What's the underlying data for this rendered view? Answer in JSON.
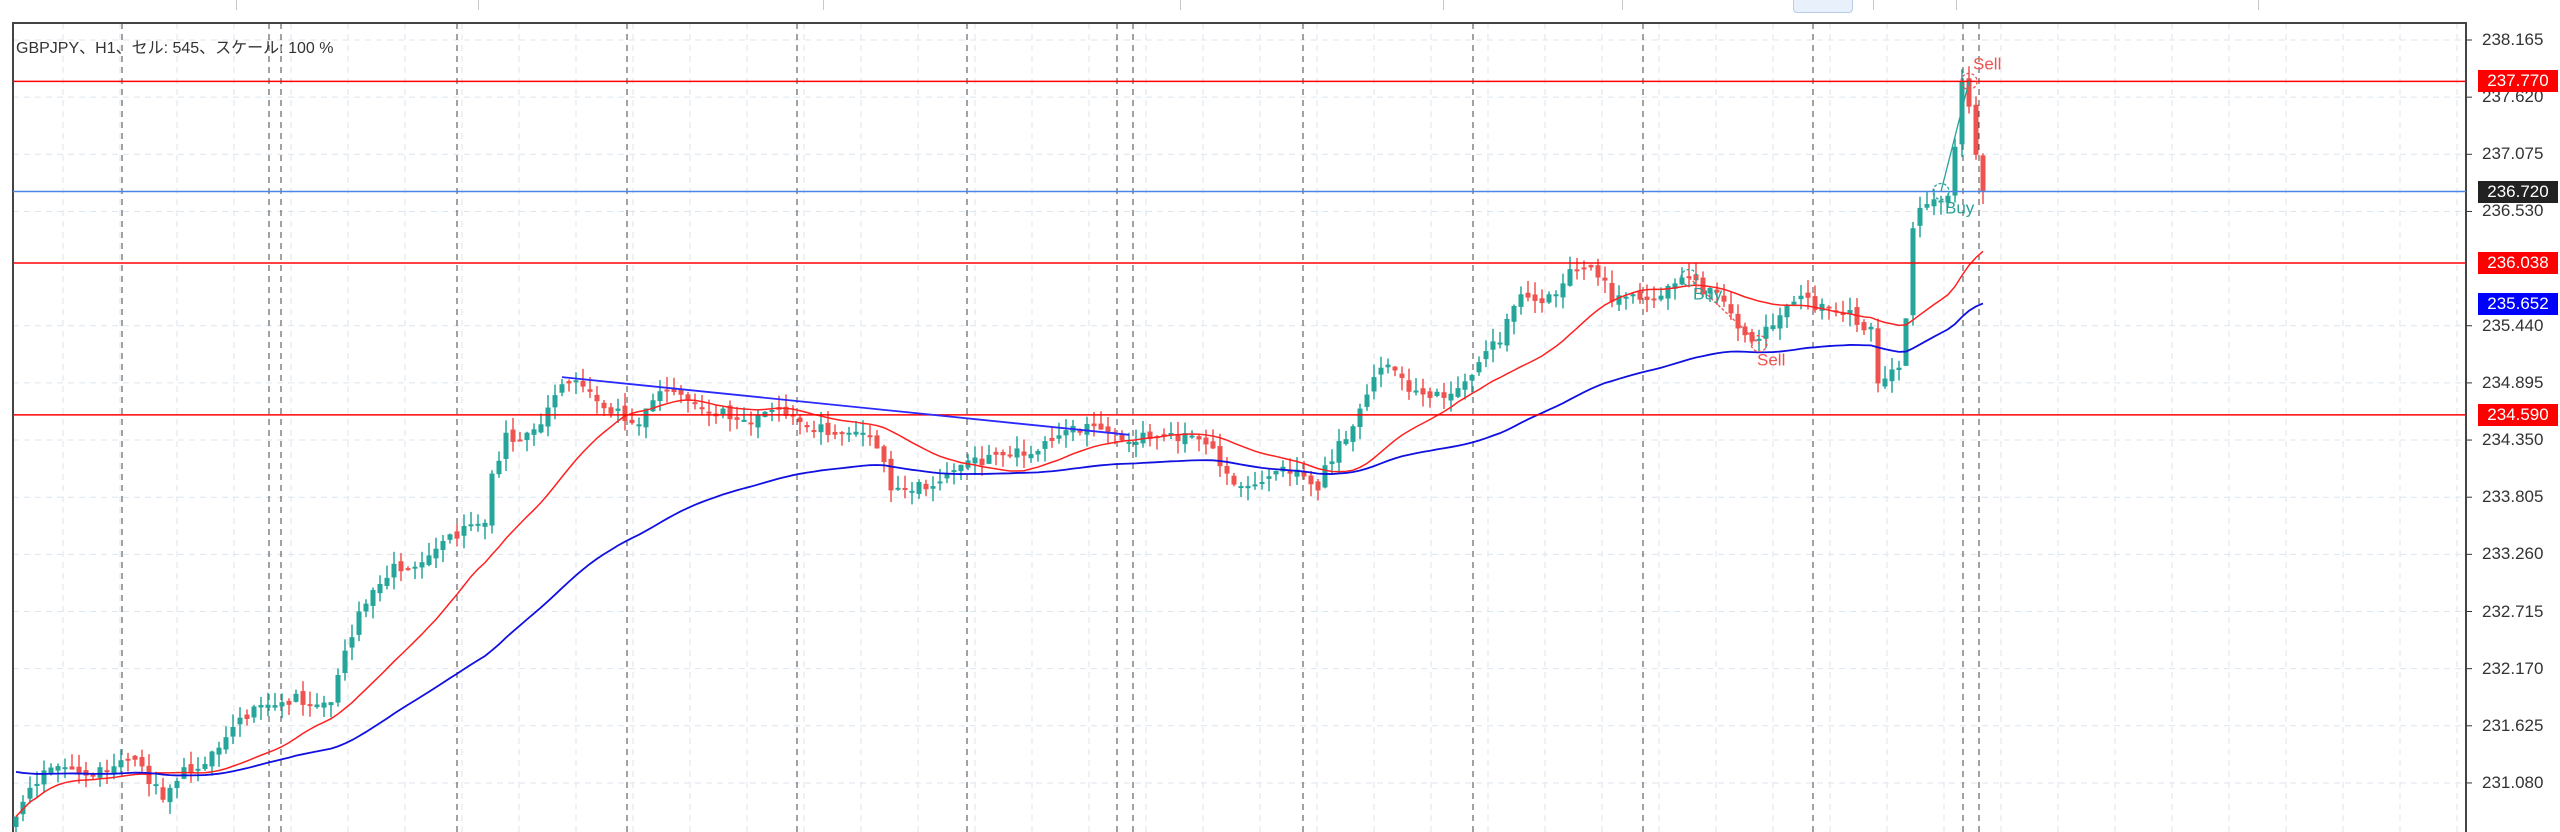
{
  "header": {
    "text": "GBPJPY、H1、セル: 545、スケール: 100 %"
  },
  "axis": {
    "ticks": [
      "238.165",
      "237.620",
      "237.075",
      "236.530",
      "235.440",
      "234.895",
      "234.350",
      "233.805",
      "233.260",
      "232.715",
      "232.170",
      "231.625",
      "231.080"
    ],
    "price_labels": [
      {
        "text": "237.770",
        "value": 237.77,
        "color": "#ff0000"
      },
      {
        "text": "236.720",
        "value": 236.72,
        "color": "#222222"
      },
      {
        "text": "236.038",
        "value": 236.038,
        "color": "#ff0000"
      },
      {
        "text": "235.652",
        "value": 235.652,
        "color": "#0000ff"
      },
      {
        "text": "234.590",
        "value": 234.59,
        "color": "#ff0000"
      }
    ]
  },
  "trades": [
    {
      "label": "Buy",
      "index": 239,
      "price": 235.9,
      "color": "#2aa198"
    },
    {
      "label": "Sell",
      "index": 249,
      "price": 235.27,
      "color": "#ef5350"
    },
    {
      "label": "Buy",
      "index": 275,
      "price": 236.72,
      "color": "#2aa198"
    },
    {
      "label": "Sell",
      "index": 279,
      "price": 237.77,
      "color": "#ef5350"
    }
  ],
  "colors": {
    "bull": "#26a69a",
    "bear": "#ef5350",
    "ma_fast": "#ff2020",
    "ma_slow": "#1010e0",
    "level": "#ff0000",
    "bid": "#4a86e8",
    "trend": "#2a2aff"
  },
  "chart_data": {
    "type": "candlestick",
    "symbol": "GBPJPY",
    "timeframe": "H1",
    "ylim": [
      230.6,
      238.5
    ],
    "levels": [
      237.77,
      236.038,
      234.59
    ],
    "bid": 236.72,
    "trendline": [
      [
        78,
        234.95
      ],
      [
        159,
        234.4
      ]
    ],
    "close_anchors": [
      [
        0,
        230.76
      ],
      [
        3,
        231.07
      ],
      [
        7,
        231.23
      ],
      [
        12,
        231.23
      ],
      [
        16,
        231.31
      ],
      [
        19,
        231.07
      ],
      [
        21,
        230.92
      ],
      [
        24,
        231.23
      ],
      [
        28,
        231.38
      ],
      [
        33,
        231.69
      ],
      [
        38,
        231.85
      ],
      [
        40,
        231.93
      ],
      [
        45,
        231.85
      ],
      [
        48,
        232.47
      ],
      [
        50,
        232.79
      ],
      [
        54,
        233.17
      ],
      [
        59,
        233.25
      ],
      [
        63,
        233.41
      ],
      [
        67,
        233.56
      ],
      [
        68,
        234.03
      ],
      [
        70,
        234.42
      ],
      [
        73,
        234.42
      ],
      [
        75,
        234.5
      ],
      [
        79,
        234.89
      ],
      [
        82,
        234.81
      ],
      [
        86,
        234.65
      ],
      [
        89,
        234.5
      ],
      [
        91,
        234.73
      ],
      [
        96,
        234.73
      ],
      [
        101,
        234.65
      ],
      [
        105,
        234.5
      ],
      [
        110,
        234.58
      ],
      [
        115,
        234.5
      ],
      [
        119,
        234.42
      ],
      [
        123,
        234.27
      ],
      [
        125,
        233.87
      ],
      [
        129,
        233.95
      ],
      [
        133,
        234.03
      ],
      [
        138,
        234.11
      ],
      [
        143,
        234.27
      ],
      [
        147,
        234.34
      ],
      [
        152,
        234.42
      ],
      [
        157,
        234.42
      ],
      [
        161,
        234.42
      ],
      [
        166,
        234.34
      ],
      [
        171,
        234.27
      ],
      [
        173,
        234.03
      ],
      [
        178,
        233.95
      ],
      [
        182,
        234.03
      ],
      [
        186,
        233.87
      ],
      [
        187,
        234.11
      ],
      [
        189,
        234.34
      ],
      [
        192,
        234.65
      ],
      [
        195,
        235.04
      ],
      [
        199,
        234.81
      ],
      [
        203,
        234.81
      ],
      [
        208,
        234.97
      ],
      [
        212,
        235.28
      ],
      [
        215,
        235.74
      ],
      [
        219,
        235.74
      ],
      [
        222,
        235.98
      ],
      [
        226,
        235.9
      ],
      [
        228,
        235.67
      ],
      [
        231,
        235.74
      ],
      [
        236,
        235.82
      ],
      [
        238,
        235.9
      ],
      [
        241,
        235.74
      ],
      [
        244,
        235.67
      ],
      [
        247,
        235.35
      ],
      [
        250,
        235.43
      ],
      [
        254,
        235.67
      ],
      [
        257,
        235.59
      ],
      [
        262,
        235.59
      ],
      [
        265,
        235.43
      ],
      [
        266,
        234.89
      ],
      [
        269,
        235.04
      ],
      [
        270,
        235.51
      ],
      [
        271,
        236.37
      ],
      [
        273,
        236.6
      ],
      [
        276,
        236.68
      ],
      [
        278,
        237.77
      ],
      [
        279,
        237.53
      ],
      [
        280,
        237.07
      ],
      [
        281,
        236.72
      ]
    ]
  }
}
